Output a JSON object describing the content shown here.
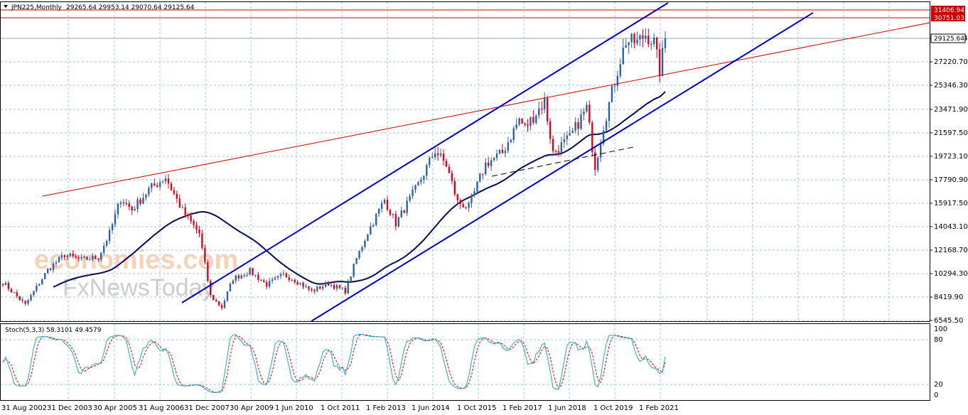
{
  "header": {
    "symbol": "JPN225,Monthly",
    "ohlc": "29265.64 29953.14 29070.64 29125.64"
  },
  "price_tags": {
    "upper_red": "31406.94",
    "lower_red": "30751.03",
    "current": "29125.64"
  },
  "indicator": {
    "label": "Stoch(5,3,3) 58.3101 49.4579"
  },
  "watermark": {
    "line1": "economies.com",
    "line2": "FxNewsToday"
  },
  "colors": {
    "channel": "#0000cc",
    "resistance": "#cc0000",
    "ma": "#0a0a50",
    "bull": "#2d5ea8",
    "bear": "#e0001a",
    "stoch_main": "#26a6b8",
    "stoch_signal": "#dd0000",
    "grid": "#9fc7d6"
  },
  "chart_data": [
    {
      "type": "candlestick",
      "symbol": "JPN225",
      "timeframe": "Monthly",
      "y_ticks": [
        "31406.94",
        "29125.64",
        "27220.70",
        "25346.30",
        "23471.90",
        "21597.50",
        "19723.10",
        "17790.90",
        "15917.50",
        "14043.10",
        "12168.70",
        "10294.30",
        "8419.90",
        "6545.50"
      ],
      "ylim": [
        6545.5,
        31500
      ],
      "x_ticks": [
        "31 Aug 2002",
        "31 Dec 2003",
        "30 Apr 2005",
        "31 Aug 2006",
        "31 Dec 2007",
        "30 Apr 2009",
        "1 Jun 2010",
        "1 Oct 2011",
        "1 Feb 2013",
        "1 Jun 2014",
        "1 Oct 2015",
        "1 Feb 2017",
        "1 Jun 2018",
        "1 Oct 2019",
        "1 Feb 2021"
      ],
      "close_path": [
        [
          "2002-08",
          9600
        ],
        [
          "2003-04",
          7800
        ],
        [
          "2003-12",
          10600
        ],
        [
          "2004-06",
          11800
        ],
        [
          "2004-12",
          11400
        ],
        [
          "2005-06",
          11600
        ],
        [
          "2005-10",
          13500
        ],
        [
          "2006-02",
          16300
        ],
        [
          "2006-06",
          15400
        ],
        [
          "2006-12",
          17000
        ],
        [
          "2007-06",
          18000
        ],
        [
          "2007-12",
          15300
        ],
        [
          "2008-06",
          13500
        ],
        [
          "2008-10",
          8500
        ],
        [
          "2009-02",
          7600
        ],
        [
          "2009-06",
          9900
        ],
        [
          "2009-12",
          10500
        ],
        [
          "2010-06",
          9400
        ],
        [
          "2010-12",
          10200
        ],
        [
          "2011-04",
          9800
        ],
        [
          "2011-10",
          8900
        ],
        [
          "2012-04",
          9500
        ],
        [
          "2012-10",
          8900
        ],
        [
          "2013-02",
          11500
        ],
        [
          "2013-06",
          13600
        ],
        [
          "2013-12",
          16200
        ],
        [
          "2014-04",
          14300
        ],
        [
          "2014-12",
          17400
        ],
        [
          "2015-06",
          20200
        ],
        [
          "2015-10",
          19000
        ],
        [
          "2016-02",
          16000
        ],
        [
          "2016-06",
          15600
        ],
        [
          "2016-12",
          19100
        ],
        [
          "2017-06",
          20000
        ],
        [
          "2017-12",
          22700
        ],
        [
          "2018-02",
          22000
        ],
        [
          "2018-09",
          24100
        ],
        [
          "2018-12",
          20000
        ],
        [
          "2019-06",
          21200
        ],
        [
          "2019-12",
          23600
        ],
        [
          "2020-03",
          18900
        ],
        [
          "2020-06",
          22200
        ],
        [
          "2020-12",
          27400
        ],
        [
          "2021-02",
          28900
        ],
        [
          "2021-06",
          28800
        ],
        [
          "2021-09",
          29450
        ],
        [
          "2021-12",
          28800
        ],
        [
          "2022-02",
          26500
        ],
        [
          "2022-04",
          29125.64
        ]
      ],
      "indicator": "Stoch(5,3,3)",
      "indicator_values": {
        "main": 58.3101,
        "signal": 49.4579
      },
      "indicator_levels": [
        100,
        80,
        20,
        0
      ],
      "grid": true
    }
  ]
}
